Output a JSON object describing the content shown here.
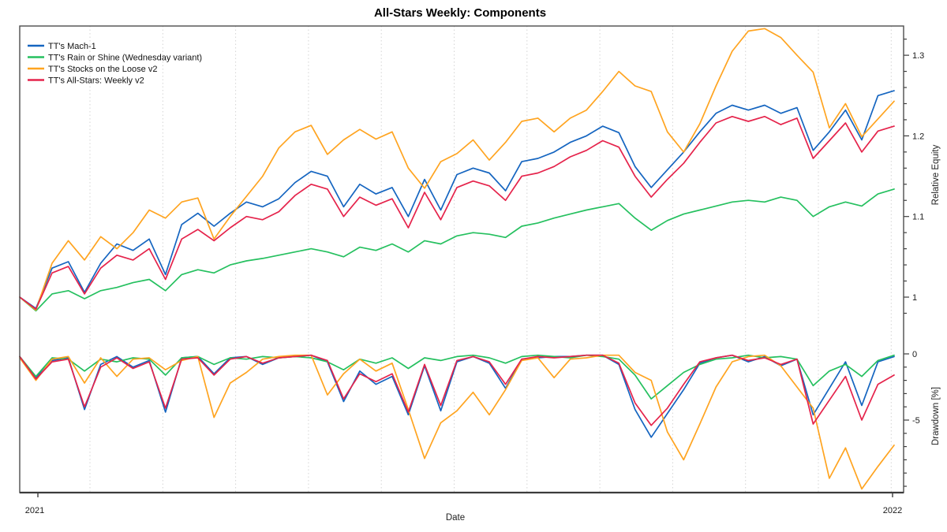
{
  "window": {
    "title": "All-Stars Weekly: Components"
  },
  "chart_data": {
    "type": "line",
    "title": "All-Stars Weekly: Components",
    "xlabel": "Date",
    "x_axis": {
      "start_label": "2021",
      "end_label": "2022",
      "gridlines": "monthly-dotted"
    },
    "legend_position": "top-left",
    "panels": [
      {
        "id": "equity",
        "ylabel": "Relative Equity",
        "ylim": [
          0.975,
          1.336
        ],
        "major_ticks": [
          1,
          1.1,
          1.2,
          1.3
        ],
        "tick_labels": [
          "1",
          "1.1",
          "1.2",
          "1.3"
        ],
        "minor_tick_step": 0.02
      },
      {
        "id": "drawdown",
        "ylabel": "Drawdown [%]",
        "ylim": [
          -10.8,
          0.3
        ],
        "major_ticks": [
          0,
          -5
        ],
        "tick_labels": [
          "0",
          "-5"
        ],
        "minor_tick_step": 1
      }
    ],
    "series": [
      {
        "name": "TT's Mach-1",
        "color": "#1565c0",
        "equity": [
          1.0,
          0.986,
          1.036,
          1.044,
          1.006,
          1.042,
          1.066,
          1.058,
          1.072,
          1.028,
          1.09,
          1.104,
          1.088,
          1.104,
          1.118,
          1.112,
          1.122,
          1.142,
          1.156,
          1.15,
          1.112,
          1.14,
          1.128,
          1.136,
          1.1,
          1.146,
          1.108,
          1.152,
          1.16,
          1.154,
          1.132,
          1.168,
          1.172,
          1.18,
          1.192,
          1.2,
          1.212,
          1.204,
          1.162,
          1.136,
          1.158,
          1.18,
          1.205,
          1.228,
          1.238,
          1.232,
          1.238,
          1.228,
          1.235,
          1.182,
          1.205,
          1.232,
          1.195,
          1.25,
          1.256
        ],
        "drawdown": [
          -0.2,
          -1.8,
          -0.5,
          -0.3,
          -4.2,
          -0.8,
          -0.2,
          -1.0,
          -0.5,
          -4.4,
          -0.3,
          -0.2,
          -1.5,
          -0.3,
          -0.2,
          -0.8,
          -0.3,
          -0.2,
          -0.1,
          -0.6,
          -3.6,
          -1.3,
          -2.3,
          -1.7,
          -4.6,
          -0.9,
          -4.3,
          -0.6,
          -0.2,
          -0.7,
          -2.6,
          -0.4,
          -0.3,
          -0.2,
          -0.2,
          -0.1,
          -0.1,
          -0.8,
          -4.2,
          -6.3,
          -4.5,
          -2.7,
          -0.7,
          -0.3,
          -0.1,
          -0.6,
          -0.2,
          -0.9,
          -0.4,
          -4.6,
          -2.6,
          -0.6,
          -3.9,
          -0.6,
          -0.2
        ]
      },
      {
        "name": "TT's Rain or Shine (Wednesday variant)",
        "color": "#25c05f",
        "equity": [
          1.0,
          0.983,
          1.004,
          1.008,
          0.998,
          1.008,
          1.012,
          1.018,
          1.022,
          1.008,
          1.028,
          1.034,
          1.03,
          1.04,
          1.045,
          1.048,
          1.052,
          1.056,
          1.06,
          1.056,
          1.05,
          1.062,
          1.058,
          1.066,
          1.056,
          1.07,
          1.066,
          1.076,
          1.08,
          1.078,
          1.074,
          1.088,
          1.092,
          1.098,
          1.103,
          1.108,
          1.112,
          1.116,
          1.098,
          1.083,
          1.095,
          1.103,
          1.108,
          1.113,
          1.118,
          1.12,
          1.118,
          1.124,
          1.12,
          1.1,
          1.112,
          1.118,
          1.113,
          1.128,
          1.134
        ],
        "drawdown": [
          -0.2,
          -1.7,
          -0.3,
          -0.4,
          -1.3,
          -0.4,
          -0.6,
          -0.3,
          -0.4,
          -1.6,
          -0.3,
          -0.2,
          -0.8,
          -0.3,
          -0.4,
          -0.2,
          -0.3,
          -0.2,
          -0.3,
          -0.6,
          -1.2,
          -0.4,
          -0.7,
          -0.3,
          -1.1,
          -0.3,
          -0.5,
          -0.2,
          -0.1,
          -0.3,
          -0.7,
          -0.2,
          -0.1,
          -0.2,
          -0.3,
          -0.1,
          -0.2,
          -0.4,
          -1.6,
          -3.4,
          -2.4,
          -1.4,
          -0.8,
          -0.4,
          -0.3,
          -0.1,
          -0.3,
          -0.2,
          -0.4,
          -2.4,
          -1.3,
          -0.8,
          -1.7,
          -0.5,
          -0.1
        ]
      },
      {
        "name": "TT's Stocks on the Loose v2",
        "color": "#ffa420",
        "equity": [
          1.0,
          0.984,
          1.042,
          1.07,
          1.046,
          1.075,
          1.06,
          1.08,
          1.108,
          1.098,
          1.118,
          1.123,
          1.072,
          1.1,
          1.125,
          1.15,
          1.185,
          1.205,
          1.213,
          1.177,
          1.195,
          1.208,
          1.196,
          1.205,
          1.16,
          1.135,
          1.168,
          1.178,
          1.195,
          1.17,
          1.192,
          1.218,
          1.222,
          1.205,
          1.222,
          1.232,
          1.255,
          1.28,
          1.262,
          1.255,
          1.205,
          1.18,
          1.215,
          1.262,
          1.305,
          1.33,
          1.333,
          1.322,
          1.3,
          1.279,
          1.21,
          1.24,
          1.199,
          1.221,
          1.243
        ],
        "drawdown": [
          -0.3,
          -2.0,
          -0.4,
          -0.2,
          -2.2,
          -0.3,
          -1.7,
          -0.4,
          -0.3,
          -1.2,
          -0.5,
          -0.2,
          -4.8,
          -2.2,
          -1.4,
          -0.4,
          -0.2,
          -0.1,
          -0.1,
          -3.1,
          -1.5,
          -0.4,
          -1.3,
          -0.7,
          -4.2,
          -7.9,
          -5.2,
          -4.3,
          -2.9,
          -4.6,
          -2.7,
          -0.5,
          -0.3,
          -1.8,
          -0.4,
          -0.3,
          -0.1,
          -0.1,
          -1.4,
          -2.0,
          -5.9,
          -8.0,
          -5.3,
          -2.5,
          -0.6,
          -0.2,
          -0.1,
          -0.9,
          -2.5,
          -4.1,
          -9.4,
          -7.1,
          -10.2,
          -8.5,
          -6.9
        ]
      },
      {
        "name": "TT's All-Stars: Weekly v2",
        "color": "#e5234b",
        "equity": [
          1.0,
          0.985,
          1.03,
          1.038,
          1.004,
          1.036,
          1.052,
          1.046,
          1.06,
          1.022,
          1.072,
          1.084,
          1.07,
          1.086,
          1.1,
          1.096,
          1.106,
          1.126,
          1.14,
          1.134,
          1.1,
          1.124,
          1.114,
          1.122,
          1.086,
          1.13,
          1.096,
          1.136,
          1.144,
          1.138,
          1.12,
          1.15,
          1.154,
          1.162,
          1.174,
          1.182,
          1.194,
          1.186,
          1.15,
          1.124,
          1.146,
          1.166,
          1.192,
          1.216,
          1.224,
          1.218,
          1.224,
          1.214,
          1.222,
          1.172,
          1.194,
          1.216,
          1.18,
          1.206,
          1.212
        ],
        "drawdown": [
          -0.2,
          -1.9,
          -0.6,
          -0.4,
          -4.0,
          -1.0,
          -0.3,
          -1.1,
          -0.6,
          -4.1,
          -0.4,
          -0.3,
          -1.6,
          -0.4,
          -0.2,
          -0.7,
          -0.3,
          -0.2,
          -0.1,
          -0.5,
          -3.4,
          -1.5,
          -2.1,
          -1.5,
          -4.4,
          -0.8,
          -3.9,
          -0.5,
          -0.2,
          -0.6,
          -2.3,
          -0.4,
          -0.2,
          -0.3,
          -0.2,
          -0.1,
          -0.1,
          -0.7,
          -3.7,
          -5.4,
          -4.1,
          -2.3,
          -0.6,
          -0.3,
          -0.1,
          -0.5,
          -0.3,
          -0.8,
          -0.4,
          -5.3,
          -3.5,
          -1.7,
          -5.0,
          -2.3,
          -1.6
        ]
      }
    ]
  }
}
